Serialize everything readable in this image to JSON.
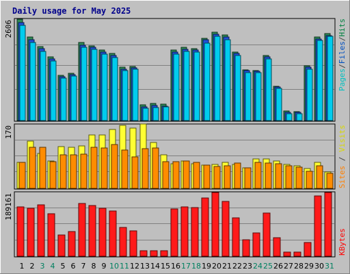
{
  "chart_data": {
    "type": "bar",
    "title": "Daily usage for May 2025",
    "days": [
      "1",
      "2",
      "3",
      "4",
      "5",
      "6",
      "7",
      "8",
      "9",
      "10",
      "11",
      "12",
      "13",
      "14",
      "15",
      "16",
      "17",
      "18",
      "19",
      "20",
      "21",
      "22",
      "23",
      "24",
      "25",
      "26",
      "27",
      "28",
      "29",
      "30",
      "31"
    ],
    "weekend_days": [
      "3",
      "4",
      "10",
      "11",
      "17",
      "18",
      "24",
      "25",
      "31"
    ],
    "panels": [
      {
        "id": "top",
        "max_label": "2606",
        "ylim": [
          0,
          2606
        ],
        "axis_label_parts": [
          {
            "text": "Pages",
            "color": "#00c0c0"
          },
          {
            "text": "/",
            "color": "#404040"
          },
          {
            "text": "Files",
            "color": "#0050c0"
          },
          {
            "text": "/",
            "color": "#404040"
          },
          {
            "text": "Hits",
            "color": "#008040"
          }
        ],
        "series": [
          {
            "name": "Hits",
            "color": "#2e8b57",
            "values": [
              2606,
              2140,
              1905,
              1645,
              1166,
              1221,
              2003,
              1920,
              1805,
              1720,
              1366,
              1390,
              408,
              445,
              415,
              1807,
              1880,
              1850,
              2120,
              2275,
              2196,
              1765,
              1305,
              1291,
              1670,
              884,
              239,
              236,
              1410,
              2150,
              2241
            ]
          },
          {
            "name": "Files",
            "color": "#1f4fd8",
            "values": [
              2510,
              2071,
              1842,
              1590,
              1130,
              1183,
              1945,
              1880,
              1756,
              1664,
              1327,
              1358,
              357,
              395,
              370,
              1761,
              1834,
              1805,
              2073,
              2218,
              2145,
              1722,
              1279,
              1261,
              1631,
              860,
              204,
              205,
              1375,
              2103,
              2190
            ]
          },
          {
            "name": "Pages",
            "color": "#00ccee",
            "values": [
              2450,
              2005,
              1785,
              1535,
              1097,
              1148,
              1892,
              1830,
              1703,
              1613,
              1287,
              1316,
              318,
              335,
              352,
              1711,
              1785,
              1755,
              1985,
              2173,
              2082,
              1670,
              1228,
              1233,
              1589,
              836,
              174,
              174,
              1325,
              2055,
              2163
            ]
          }
        ]
      },
      {
        "id": "middle",
        "max_label": "170",
        "ylim": [
          0,
          170
        ],
        "axis_label_parts": [
          {
            "text": "Sites",
            "color": "#ff8000"
          },
          {
            "text": " / ",
            "color": "#404040"
          },
          {
            "text": "Visits",
            "color": "#d8d800"
          }
        ],
        "series": [
          {
            "name": "Visits",
            "color": "#ffff33",
            "values": [
              69,
              125,
              93,
              72,
              111,
              109,
              112,
              141,
              141,
              155,
              167,
              160,
              170,
              121,
              89,
              65,
              73,
              65,
              61,
              63,
              68,
              63,
              55,
              77,
              77,
              72,
              64,
              60,
              53,
              69,
              43
            ]
          },
          {
            "name": "Sites",
            "color": "#ff8c00",
            "values": [
              68,
              108,
              108,
              70,
              89,
              88,
              90,
              108,
              106,
              115,
              101,
              83,
              104,
              107,
              71,
              70,
              73,
              69,
              61,
              58,
              60,
              67,
              54,
              69,
              67,
              66,
              59,
              56,
              46,
              60,
              40
            ]
          }
        ]
      },
      {
        "id": "bottom",
        "max_label": "189161",
        "ylim": [
          0,
          189161
        ],
        "axis_label_parts": [
          {
            "text": "KBytes",
            "color": "#ff0000"
          }
        ],
        "series": [
          {
            "name": "KBytes",
            "color": "#ff1a1a",
            "values": [
              146800,
              142100,
              152900,
              126100,
              62900,
              73600,
              156000,
              150300,
              142100,
              134400,
              85300,
              74700,
              16400,
              16400,
              16400,
              140800,
              147100,
              145300,
              172300,
              189161,
              162600,
              113500,
              48100,
              70100,
              128000,
              55500,
              11700,
              11700,
              41000,
              178000,
              189161
            ]
          }
        ]
      }
    ]
  }
}
